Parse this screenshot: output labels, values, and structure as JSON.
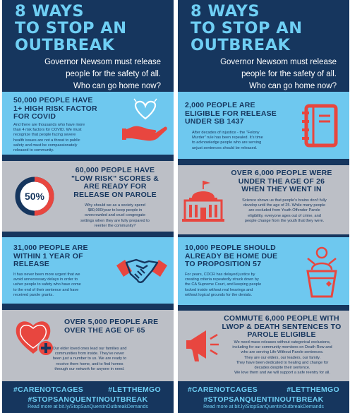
{
  "left": {
    "title": [
      "8 WAYS",
      "TO STOP AN",
      "OUTBREAK"
    ],
    "subtitle": [
      "Governor Newsom must release",
      "people for the safety of all.",
      "Who can go home now?"
    ],
    "cards": [
      {
        "heading": [
          "50,000 PEOPLE HAVE",
          "1+ HIGH RISK FACTOR",
          "FOR COVID"
        ],
        "body": [
          "And there are thousands who have more",
          "than 4 risk factors for COVID. We must",
          "recognize that people facing severe",
          "health issues are not a threat to public",
          "safety and must be compassionately",
          "released to community."
        ],
        "icon": "heart-hand-icon"
      },
      {
        "heading": [
          "60,000 PEOPLE HAVE",
          "\"LOW RISK\" SCORES &",
          "ARE READY FOR",
          "RELEASE ON PAROLE"
        ],
        "body": [
          "Why should we as a society spend",
          "$80,000/year to keep people in",
          "overcrowded and cruel congregate",
          "settings when they are fully prepared to",
          "reenter the community?"
        ],
        "icon": "fifty-percent-ring-icon",
        "badge": "50%",
        "badge_fraction": 0.5
      },
      {
        "heading": [
          "31,000 PEOPLE ARE",
          "WITHIN 1 YEAR OF",
          "RELEASE"
        ],
        "body": [
          "It has never been more urgent that we",
          "avoid unnecessary delays in order to",
          "usher people to safety who have come",
          "to the end of their sentence and have",
          "received parole grants."
        ],
        "icon": "handshake-icon"
      },
      {
        "heading": [
          "OVER 5,000 PEOPLE ARE",
          "OVER THE AGE OF 65"
        ],
        "body": [
          "Our elder loved ones lead our families and",
          "communities from inside. They've never",
          "been just a number to us. We are ready to",
          "receive them home, and to find homes",
          "through our network for anyone in need."
        ],
        "icon": "heart-plus-icon"
      }
    ],
    "hashtag_1": "#CARENOTCAGES",
    "hashtag_2": "#LETTHEMGO",
    "hashtag_3": "#STOPSANQUENTINOUTBREAK",
    "read_more": "Read more at bit.ly/StopSanQuentinOutbreakDemands"
  },
  "right": {
    "title": [
      "8 WAYS",
      "TO STOP AN",
      "OUTBREAK"
    ],
    "subtitle": [
      "Governor Newsom must release",
      "people for the safety of all.",
      "Who can go home now?"
    ],
    "cards": [
      {
        "heading": [
          "2,000 PEOPLE ARE",
          "ELIGIBLE FOR RELEASE",
          "UNDER SB 1437"
        ],
        "body": [
          "After decades of injustice - the \"Felony",
          "Murder\" rule has been repealed. It's time",
          "to acknowledge people who are serving",
          "unjust sentences should be released."
        ],
        "icon": "notebook-icon"
      },
      {
        "heading": [
          "OVER 6,000 PEOPLE WERE",
          "UNDER THE AGE OF 26",
          "WHEN THEY WENT IN"
        ],
        "body": [
          "Science shows us that people's brains don't fully",
          "develop until the age of 25. While many people",
          "are excluded from Youth Offender Parole",
          "eligibility, everyone ages out of crime, and",
          "people change from the youth that they were."
        ],
        "icon": "capitol-building-icon"
      },
      {
        "heading": [
          "10,000 PEOPLE SHOULD",
          "ALREADY BE HOME DUE",
          "TO PROPOSITION 57"
        ],
        "body": [
          "For years, CDCR has delayed justice by",
          "creating criteria repeatedly struck down by",
          "the CA Supreme Court, and keeping people",
          "locked inside without real hearings and",
          "without logical grounds for the denials."
        ],
        "icon": "speaker-podium-icon"
      },
      {
        "heading": [
          "COMMUTE 6,000 PEOPLE WITH",
          "LWOP & DEATH SENTENCES TO",
          "PAROLE ELIGIBLE"
        ],
        "body": [
          "We need mass releases without categorical exclusions,",
          "including for our community members on Death Row and",
          "who are serving Life Without Parole sentences.",
          "They are our elders, our leaders, our family.",
          "They have been dedicated to healing and change for",
          "decades despite their sentence.",
          "We love them and we will support a safe reentry for all."
        ],
        "icon": "megaphone-icon"
      }
    ],
    "hashtag_1": "#CARENOTCAGES",
    "hashtag_2": "#LETTHEMGO",
    "hashtag_3": "#STOPSANQUENTINOUTBREAK",
    "read_more": "Read more at bit.ly/StopSanQuentinOutbreakDemands"
  },
  "colors": {
    "navy": "#16365e",
    "light_blue": "#6ec8ef",
    "title_blue": "#6fcff4",
    "grey": "#bcbfc6",
    "red": "#e8463f",
    "white": "#ffffff"
  }
}
